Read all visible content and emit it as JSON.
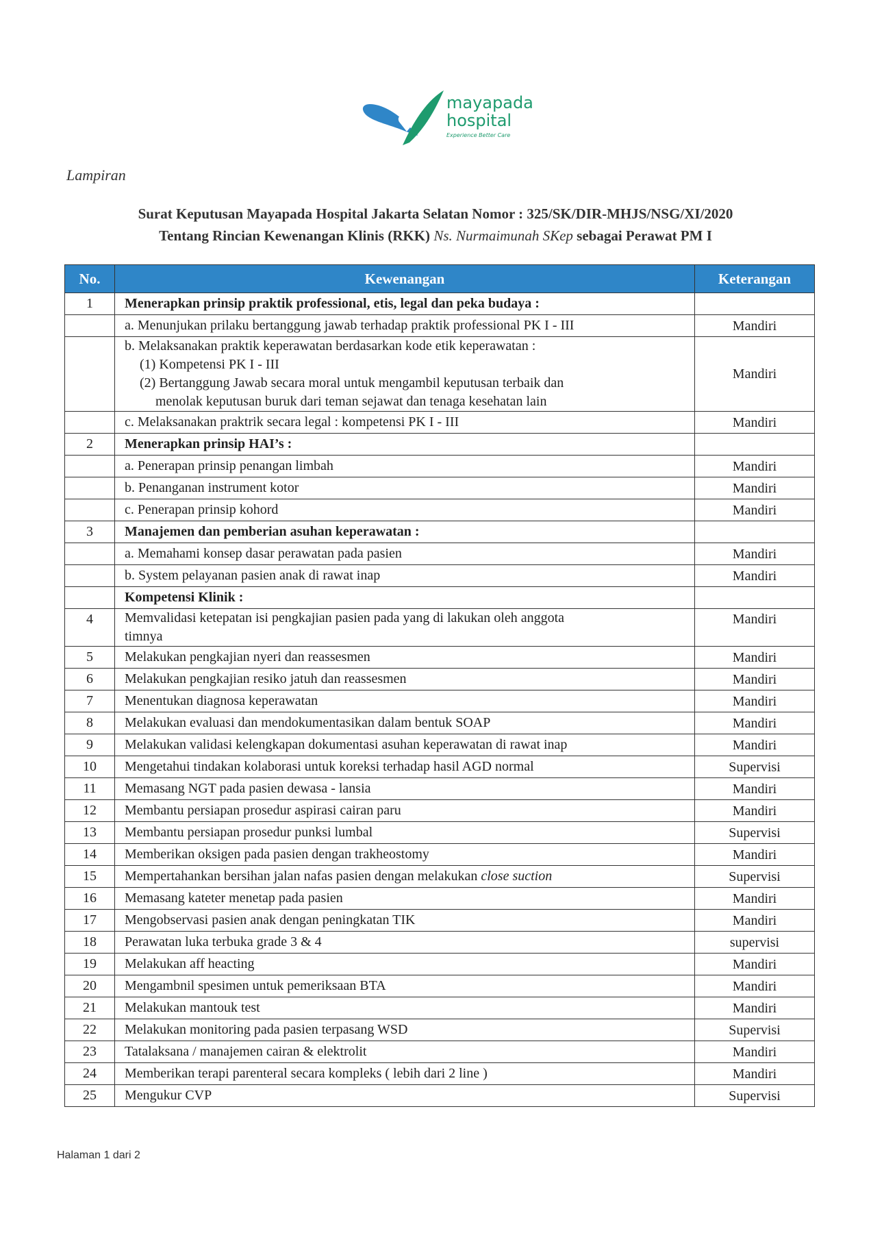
{
  "logo": {
    "name": "mayapada",
    "sub": "hospital",
    "tagline": "Experience Better Care",
    "colors": {
      "blue": "#2f86c8",
      "green": "#1e9b6e"
    }
  },
  "lampiran": "Lampiran",
  "title_line1": "Surat Keputusan Mayapada Hospital Jakarta Selatan Nomor : 325/SK/DIR-MHJS/NSG/XI/2020",
  "title_line2_a": "Tentang Rincian Kewenangan Klinis (RKK) ",
  "title_line2_name": "Ns. Nurmaimunah SKep",
  "title_line2_b": " sebagai Perawat PM I",
  "table": {
    "headers": [
      "No.",
      "Kewenangan",
      "Keterangan"
    ],
    "header_color": "#2f86c8",
    "rows": [
      {
        "no": "1",
        "text": "Menerapkan prinsip praktik professional, etis, legal dan peka budaya :",
        "ket": "",
        "bold": true
      },
      {
        "no": "",
        "text": "a. Menunjukan prilaku bertanggung jawab terhadap praktik professional PK I - III",
        "ket": "Mandiri"
      },
      {
        "no": "",
        "lines": [
          "b. Melaksanakan praktik keperawatan berdasarkan kode etik keperawatan :",
          "(1) Kompetensi PK I - III",
          "(2) Bertanggung Jawab secara moral untuk mengambil keputusan terbaik dan",
          "menolak keputusan buruk dari teman sejawat dan tenaga kesehatan lain"
        ],
        "ket": "Mandiri"
      },
      {
        "no": "",
        "text": "c. Melaksanakan praktrik secara legal : kompetensi PK I - III",
        "ket": "Mandiri"
      },
      {
        "no": "2",
        "text": "Menerapkan prinsip HAI’s :",
        "ket": "",
        "bold": true
      },
      {
        "no": "",
        "text": "a. Penerapan prinsip penangan limbah",
        "ket": "Mandiri"
      },
      {
        "no": "",
        "text": "b. Penanganan instrument kotor",
        "ket": "Mandiri"
      },
      {
        "no": "",
        "text": "c. Penerapan prinsip kohord",
        "ket": "Mandiri"
      },
      {
        "no": "3",
        "text": "Manajemen dan pemberian asuhan keperawatan :",
        "ket": "",
        "bold": true
      },
      {
        "no": "",
        "text": "a. Memahami konsep dasar perawatan pada pasien",
        "ket": "Mandiri"
      },
      {
        "no": "",
        "text": "b. System pelayanan pasien anak di rawat inap",
        "ket": "Mandiri"
      },
      {
        "no": "",
        "text": "Kompetensi Klinik :",
        "ket": "",
        "bold": true
      },
      {
        "no": "4",
        "lines": [
          "Memvalidasi ketepatan isi pengkajian pasien pada yang di lakukan oleh anggota",
          "timnya"
        ],
        "ket": "Mandiri",
        "ket_top": true
      },
      {
        "no": "5",
        "text": "Melakukan pengkajian nyeri dan reassesmen",
        "ket": "Mandiri"
      },
      {
        "no": "6",
        "text": "Melakukan pengkajian resiko jatuh dan reassesmen",
        "ket": "Mandiri"
      },
      {
        "no": "7",
        "text": "Menentukan diagnosa keperawatan",
        "ket": "Mandiri"
      },
      {
        "no": "8",
        "text": "Melakukan evaluasi dan mendokumentasikan dalam bentuk SOAP",
        "ket": "Mandiri"
      },
      {
        "no": "9",
        "text": "Melakukan validasi kelengkapan dokumentasi asuhan keperawatan di rawat inap",
        "ket": "Mandiri"
      },
      {
        "no": "10",
        "text": "Mengetahui tindakan kolaborasi untuk koreksi terhadap hasil AGD normal",
        "ket": "Supervisi"
      },
      {
        "no": "11",
        "text": "Memasang NGT pada pasien dewasa - lansia",
        "ket": "Mandiri"
      },
      {
        "no": "12",
        "text": "Membantu persiapan prosedur aspirasi cairan paru",
        "ket": "Mandiri"
      },
      {
        "no": "13",
        "text": "Membantu persiapan prosedur punksi lumbal",
        "ket": "Supervisi"
      },
      {
        "no": "14",
        "text": "Memberikan oksigen pada pasien dengan trakheostomy",
        "ket": "Mandiri"
      },
      {
        "no": "15",
        "text": "Mempertahankan bersihan jalan nafas pasien dengan melakukan ",
        "italic": "close suction",
        "ket": "Supervisi"
      },
      {
        "no": "16",
        "text": "Memasang kateter menetap pada pasien",
        "ket": "Mandiri"
      },
      {
        "no": "17",
        "text": "Mengobservasi pasien anak dengan peningkatan TIK",
        "ket": "Mandiri"
      },
      {
        "no": "18",
        "text": "Perawatan luka terbuka grade 3 & 4",
        "ket": "supervisi"
      },
      {
        "no": "19",
        "text": "Melakukan aff heacting",
        "ket": "Mandiri"
      },
      {
        "no": "20",
        "text": "Mengambnil spesimen untuk pemeriksaan BTA",
        "ket": "Mandiri"
      },
      {
        "no": "21",
        "text": "Melakukan mantouk test",
        "ket": "Mandiri"
      },
      {
        "no": "22",
        "text": "Melakukan monitoring pada pasien terpasang WSD",
        "ket": "Supervisi"
      },
      {
        "no": "23",
        "text": "Tatalaksana / manajemen cairan & elektrolit",
        "ket": "Mandiri"
      },
      {
        "no": "24",
        "text": "Memberikan terapi parenteral secara kompleks ( lebih dari 2 line )",
        "ket": "Mandiri"
      },
      {
        "no": "25",
        "text": "Mengukur CVP",
        "ket": "Supervisi"
      }
    ]
  },
  "footer": "Halaman 1 dari 2"
}
